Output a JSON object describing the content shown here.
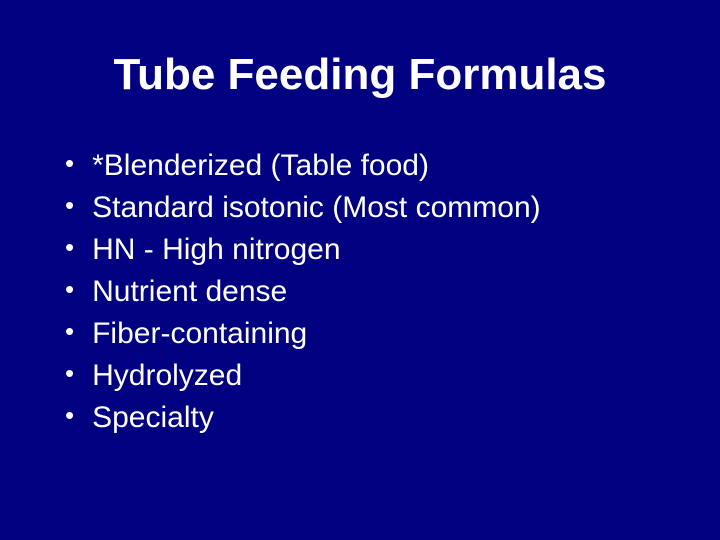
{
  "slide": {
    "title": "Tube Feeding Formulas",
    "bullets": [
      "*Blenderized (Table food)",
      "Standard isotonic (Most common)",
      "HN - High nitrogen",
      "Nutrient dense",
      "Fiber-containing",
      "Hydrolyzed",
      "Specialty"
    ],
    "background_color": "#000080",
    "text_color": "#ffffff",
    "title_fontsize": 44,
    "bullet_fontsize": 30,
    "font_family": "Arial"
  }
}
